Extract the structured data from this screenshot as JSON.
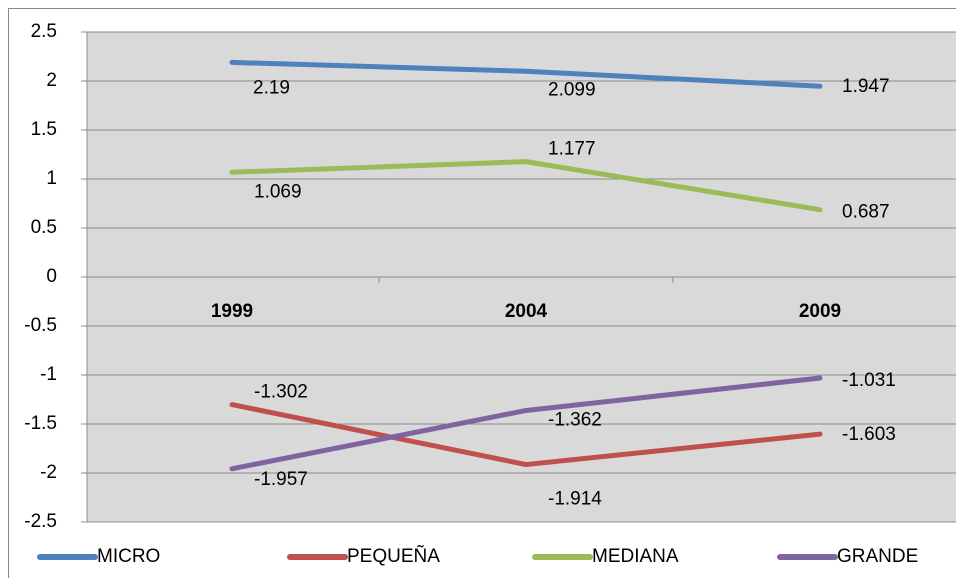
{
  "chart_data": {
    "type": "line",
    "categories": [
      "1999",
      "2004",
      "2009"
    ],
    "series": [
      {
        "name": "MICRO",
        "color": "#4f81bd",
        "values": [
          2.19,
          2.099,
          1.947
        ]
      },
      {
        "name": "PEQUEÑA",
        "color": "#c0504d",
        "values": [
          -1.302,
          -1.914,
          -1.603
        ]
      },
      {
        "name": "MEDIANA",
        "color": "#9bbb59",
        "values": [
          1.069,
          1.177,
          0.687
        ]
      },
      {
        "name": "GRANDE",
        "color": "#8064a2",
        "values": [
          -1.957,
          -1.362,
          -1.031
        ]
      }
    ],
    "ylim": [
      -2.5,
      2.5
    ],
    "yticks": [
      -2.5,
      -2,
      -1.5,
      -1,
      -0.5,
      0,
      0.5,
      1,
      1.5,
      2,
      2.5
    ],
    "grid": true,
    "legend": "bottom"
  }
}
